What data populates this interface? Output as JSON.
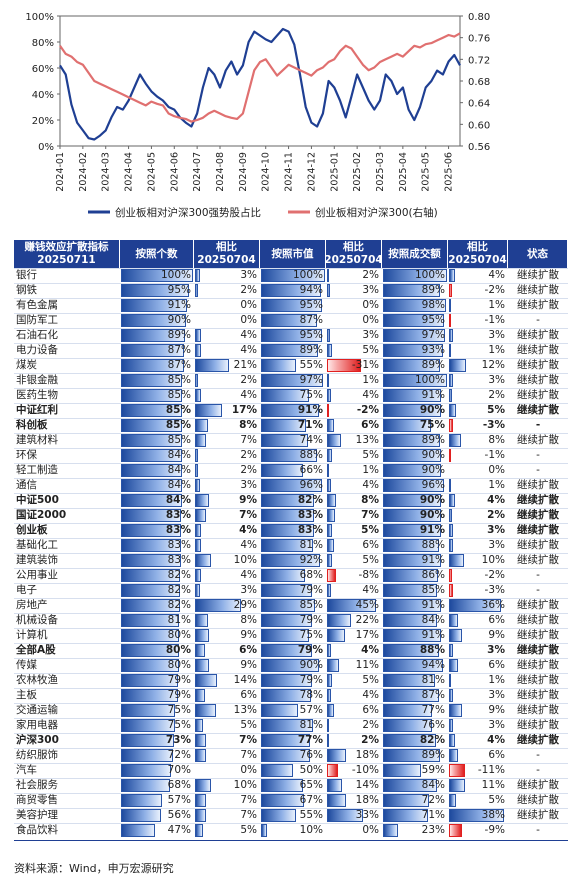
{
  "chart_data": [
    {
      "type": "line",
      "x_ticks": [
        "2024-01",
        "2024-02",
        "2024-03",
        "2024-04",
        "2024-05",
        "2024-06",
        "2024-07",
        "2024-08",
        "2024-09",
        "2024-10",
        "2024-11",
        "2024-12",
        "2025-01",
        "2025-02",
        "2025-03",
        "2025-04",
        "2025-05",
        "2025-06"
      ],
      "y_left_ticks": [
        "0%",
        "20%",
        "40%",
        "60%",
        "80%",
        "100%"
      ],
      "y_right_ticks": [
        "0.56",
        "0.60",
        "0.64",
        "0.68",
        "0.72",
        "0.76",
        "0.80"
      ],
      "ylim_left": [
        0,
        1.0
      ],
      "ylim_right": [
        0.56,
        0.8
      ],
      "legend_position": "bottom",
      "series": [
        {
          "name": "创业板相对沪深300强势股占比",
          "axis": "left",
          "color": "#1F3F93",
          "x": [
            0,
            0.25,
            0.5,
            0.75,
            1,
            1.25,
            1.5,
            1.75,
            2,
            2.25,
            2.5,
            2.75,
            3,
            3.25,
            3.5,
            3.75,
            4,
            4.25,
            4.5,
            4.75,
            5,
            5.25,
            5.5,
            5.75,
            6,
            6.25,
            6.5,
            6.75,
            7,
            7.25,
            7.5,
            7.75,
            8,
            8.25,
            8.5,
            8.75,
            9,
            9.25,
            9.5,
            9.75,
            10,
            10.25,
            10.5,
            10.75,
            11,
            11.25,
            11.5,
            11.75,
            12,
            12.25,
            12.5,
            12.75,
            13,
            13.25,
            13.5,
            13.75,
            14,
            14.25,
            14.5,
            14.75,
            15,
            15.25,
            15.5,
            15.75,
            16,
            16.25,
            16.5,
            16.75,
            17,
            17.25,
            17.5
          ],
          "values": [
            0.62,
            0.55,
            0.32,
            0.18,
            0.12,
            0.06,
            0.05,
            0.08,
            0.12,
            0.22,
            0.3,
            0.28,
            0.35,
            0.45,
            0.55,
            0.48,
            0.42,
            0.38,
            0.35,
            0.3,
            0.28,
            0.22,
            0.18,
            0.15,
            0.25,
            0.45,
            0.6,
            0.55,
            0.45,
            0.58,
            0.65,
            0.55,
            0.62,
            0.8,
            0.88,
            0.85,
            0.82,
            0.8,
            0.85,
            0.9,
            0.88,
            0.78,
            0.55,
            0.3,
            0.18,
            0.15,
            0.25,
            0.5,
            0.45,
            0.35,
            0.22,
            0.38,
            0.55,
            0.45,
            0.35,
            0.28,
            0.35,
            0.55,
            0.5,
            0.4,
            0.45,
            0.28,
            0.2,
            0.3,
            0.45,
            0.5,
            0.58,
            0.55,
            0.65,
            0.7,
            0.62
          ]
        },
        {
          "name": "创业板相对沪深300(右轴)",
          "axis": "right",
          "color": "#E07070",
          "x": [
            0,
            0.25,
            0.5,
            0.75,
            1,
            1.25,
            1.5,
            1.75,
            2,
            2.25,
            2.5,
            2.75,
            3,
            3.25,
            3.5,
            3.75,
            4,
            4.25,
            4.5,
            4.75,
            5,
            5.25,
            5.5,
            5.75,
            6,
            6.25,
            6.5,
            6.75,
            7,
            7.25,
            7.5,
            7.75,
            8,
            8.25,
            8.5,
            8.75,
            9,
            9.25,
            9.5,
            9.75,
            10,
            10.25,
            10.5,
            10.75,
            11,
            11.25,
            11.5,
            11.75,
            12,
            12.25,
            12.5,
            12.75,
            13,
            13.25,
            13.5,
            13.75,
            14,
            14.25,
            14.5,
            14.75,
            15,
            15.25,
            15.5,
            15.75,
            16,
            16.25,
            16.5,
            16.75,
            17,
            17.25,
            17.5
          ],
          "values": [
            0.745,
            0.73,
            0.725,
            0.715,
            0.71,
            0.695,
            0.68,
            0.675,
            0.67,
            0.665,
            0.66,
            0.655,
            0.65,
            0.645,
            0.64,
            0.635,
            0.642,
            0.638,
            0.635,
            0.62,
            0.615,
            0.612,
            0.61,
            0.605,
            0.608,
            0.612,
            0.62,
            0.625,
            0.62,
            0.615,
            0.612,
            0.61,
            0.62,
            0.66,
            0.7,
            0.715,
            0.72,
            0.705,
            0.69,
            0.7,
            0.71,
            0.705,
            0.7,
            0.695,
            0.69,
            0.7,
            0.705,
            0.715,
            0.72,
            0.735,
            0.745,
            0.74,
            0.725,
            0.71,
            0.7,
            0.705,
            0.715,
            0.72,
            0.725,
            0.73,
            0.725,
            0.735,
            0.745,
            0.742,
            0.748,
            0.75,
            0.755,
            0.76,
            0.765,
            0.762,
            0.768
          ]
        }
      ]
    },
    {
      "type": "table",
      "columns": [
        "赚钱效应扩散指标 20250711",
        "按照个数",
        "相比 20250704",
        "按照市值",
        "相比 20250704",
        "按照成交额",
        "相比 20250704",
        "状态"
      ],
      "rows": [
        {
          "name": "银行",
          "bold": false,
          "v": [
            100,
            3,
            100,
            2,
            100,
            4
          ],
          "status": "继续扩散"
        },
        {
          "name": "钢铁",
          "bold": false,
          "v": [
            95,
            2,
            94,
            3,
            89,
            -2
          ],
          "status": "继续扩散"
        },
        {
          "name": "有色金属",
          "bold": false,
          "v": [
            91,
            0,
            95,
            0,
            98,
            1
          ],
          "status": "继续扩散"
        },
        {
          "name": "国防军工",
          "bold": false,
          "v": [
            90,
            0,
            87,
            0,
            95,
            -1
          ],
          "status": "-"
        },
        {
          "name": "石油石化",
          "bold": false,
          "v": [
            89,
            4,
            95,
            3,
            97,
            3
          ],
          "status": "继续扩散"
        },
        {
          "name": "电力设备",
          "bold": false,
          "v": [
            87,
            4,
            89,
            5,
            93,
            1
          ],
          "status": "继续扩散"
        },
        {
          "name": "煤炭",
          "bold": false,
          "v": [
            87,
            21,
            55,
            -31,
            89,
            12
          ],
          "status": "继续扩散"
        },
        {
          "name": "非银金融",
          "bold": false,
          "v": [
            85,
            2,
            97,
            1,
            100,
            3
          ],
          "status": "继续扩散"
        },
        {
          "name": "医药生物",
          "bold": false,
          "v": [
            85,
            4,
            75,
            4,
            91,
            2
          ],
          "status": "继续扩散"
        },
        {
          "name": "中证红利",
          "bold": true,
          "v": [
            85,
            17,
            91,
            -2,
            90,
            5
          ],
          "status": "继续扩散"
        },
        {
          "name": "科创板",
          "bold": true,
          "v": [
            85,
            8,
            71,
            6,
            75,
            -3
          ],
          "status": "-"
        },
        {
          "name": "建筑材料",
          "bold": false,
          "v": [
            85,
            7,
            74,
            13,
            89,
            8
          ],
          "status": "继续扩散"
        },
        {
          "name": "环保",
          "bold": false,
          "v": [
            84,
            2,
            88,
            5,
            90,
            -1
          ],
          "status": "-"
        },
        {
          "name": "轻工制造",
          "bold": false,
          "v": [
            84,
            2,
            66,
            1,
            90,
            0
          ],
          "status": "-"
        },
        {
          "name": "通信",
          "bold": false,
          "v": [
            84,
            3,
            96,
            4,
            96,
            1
          ],
          "status": "继续扩散"
        },
        {
          "name": "中证500",
          "bold": true,
          "v": [
            84,
            9,
            82,
            8,
            90,
            4
          ],
          "status": "继续扩散"
        },
        {
          "name": "国证2000",
          "bold": true,
          "v": [
            83,
            7,
            83,
            7,
            90,
            2
          ],
          "status": "继续扩散"
        },
        {
          "name": "创业板",
          "bold": true,
          "v": [
            83,
            4,
            83,
            5,
            91,
            3
          ],
          "status": "继续扩散"
        },
        {
          "name": "基础化工",
          "bold": false,
          "v": [
            83,
            4,
            81,
            6,
            88,
            3
          ],
          "status": "继续扩散"
        },
        {
          "name": "建筑装饰",
          "bold": false,
          "v": [
            83,
            10,
            92,
            5,
            91,
            10
          ],
          "status": "继续扩散"
        },
        {
          "name": "公用事业",
          "bold": false,
          "v": [
            82,
            4,
            68,
            -8,
            86,
            -2
          ],
          "status": "-"
        },
        {
          "name": "电子",
          "bold": false,
          "v": [
            82,
            3,
            79,
            4,
            85,
            -3
          ],
          "status": "-"
        },
        {
          "name": "房地产",
          "bold": false,
          "v": [
            82,
            29,
            85,
            45,
            91,
            36
          ],
          "status": "继续扩散"
        },
        {
          "name": "机械设备",
          "bold": false,
          "v": [
            81,
            8,
            79,
            22,
            84,
            6
          ],
          "status": "继续扩散"
        },
        {
          "name": "计算机",
          "bold": false,
          "v": [
            80,
            9,
            75,
            17,
            91,
            9
          ],
          "status": "继续扩散"
        },
        {
          "name": "全部A股",
          "bold": true,
          "v": [
            80,
            6,
            79,
            4,
            88,
            3
          ],
          "status": "继续扩散"
        },
        {
          "name": "传媒",
          "bold": false,
          "v": [
            80,
            9,
            90,
            11,
            94,
            6
          ],
          "status": "继续扩散"
        },
        {
          "name": "农林牧渔",
          "bold": false,
          "v": [
            79,
            14,
            79,
            5,
            81,
            1
          ],
          "status": "继续扩散"
        },
        {
          "name": "主板",
          "bold": false,
          "v": [
            79,
            6,
            78,
            4,
            87,
            3
          ],
          "status": "继续扩散"
        },
        {
          "name": "交通运输",
          "bold": false,
          "v": [
            75,
            13,
            57,
            6,
            77,
            9
          ],
          "status": "继续扩散"
        },
        {
          "name": "家用电器",
          "bold": false,
          "v": [
            75,
            5,
            81,
            2,
            76,
            3
          ],
          "status": "继续扩散"
        },
        {
          "name": "沪深300",
          "bold": true,
          "v": [
            73,
            7,
            77,
            2,
            82,
            4
          ],
          "status": "继续扩散"
        },
        {
          "name": "纺织服饰",
          "bold": false,
          "v": [
            72,
            7,
            76,
            18,
            89,
            6
          ],
          "status": "-"
        },
        {
          "name": "汽车",
          "bold": false,
          "v": [
            70,
            0,
            50,
            -10,
            59,
            -11
          ],
          "status": "-"
        },
        {
          "name": "社会服务",
          "bold": false,
          "v": [
            68,
            10,
            65,
            14,
            84,
            11
          ],
          "status": "继续扩散"
        },
        {
          "name": "商贸零售",
          "bold": false,
          "v": [
            57,
            7,
            67,
            18,
            72,
            5
          ],
          "status": "继续扩散"
        },
        {
          "name": "美容护理",
          "bold": false,
          "v": [
            56,
            7,
            55,
            33,
            71,
            38
          ],
          "status": "继续扩散"
        },
        {
          "name": "食品饮料",
          "bold": false,
          "v": [
            47,
            5,
            10,
            0,
            23,
            -9
          ],
          "status": "-"
        }
      ]
    }
  ],
  "source_note": "资料来源：Wind，申万宏源研究"
}
